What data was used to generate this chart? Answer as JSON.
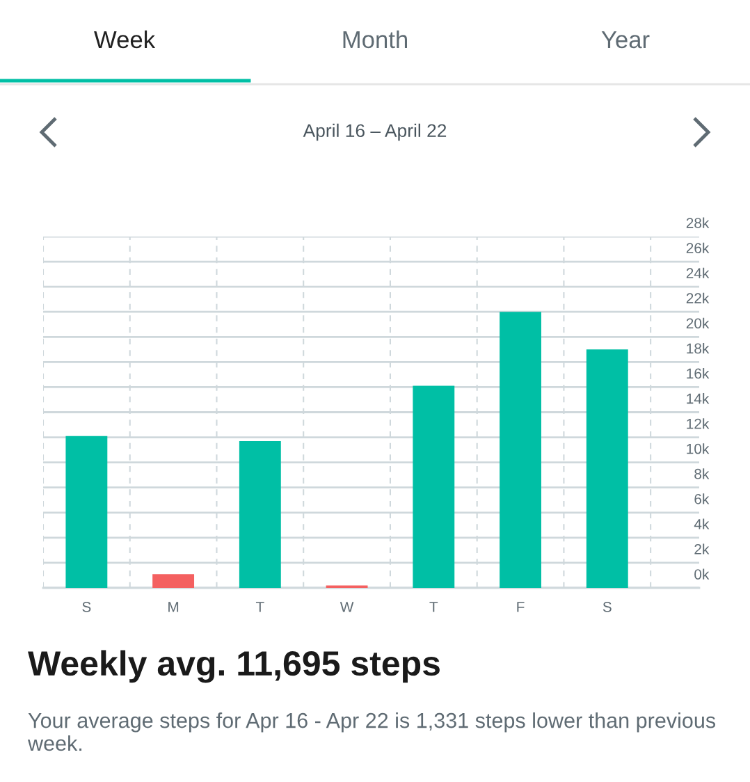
{
  "chart_data": {
    "type": "bar",
    "title": "April 16 – April 22",
    "categories": [
      "S",
      "M",
      "T",
      "W",
      "T",
      "F",
      "S"
    ],
    "values": [
      12100,
      1100,
      11700,
      200,
      16100,
      22000,
      19000
    ],
    "colors": [
      "#00bfa5",
      "#f46060",
      "#00bfa5",
      "#f46060",
      "#00bfa5",
      "#00bfa5",
      "#00bfa5"
    ],
    "ylim": [
      0,
      28000
    ],
    "yticks": [
      {
        "value": 0,
        "label": "0k"
      },
      {
        "value": 2000,
        "label": "2k"
      },
      {
        "value": 4000,
        "label": "4k"
      },
      {
        "value": 6000,
        "label": "6k"
      },
      {
        "value": 8000,
        "label": "8k"
      },
      {
        "value": 10000,
        "label": "10k"
      },
      {
        "value": 12000,
        "label": "12k"
      },
      {
        "value": 14000,
        "label": "14k"
      },
      {
        "value": 16000,
        "label": "16k"
      },
      {
        "value": 18000,
        "label": "18k"
      },
      {
        "value": 20000,
        "label": "20k"
      },
      {
        "value": 22000,
        "label": "22k"
      },
      {
        "value": 24000,
        "label": "24k"
      },
      {
        "value": 26000,
        "label": "26k"
      },
      {
        "value": 28000,
        "label": "28k"
      }
    ],
    "grid": true,
    "annotations": [
      "Week",
      "Month",
      "Year",
      "Weekly avg. 11,695 steps",
      "Your average steps for Apr 16 - Apr 22 is 1,331 steps lower than previous week."
    ]
  }
}
